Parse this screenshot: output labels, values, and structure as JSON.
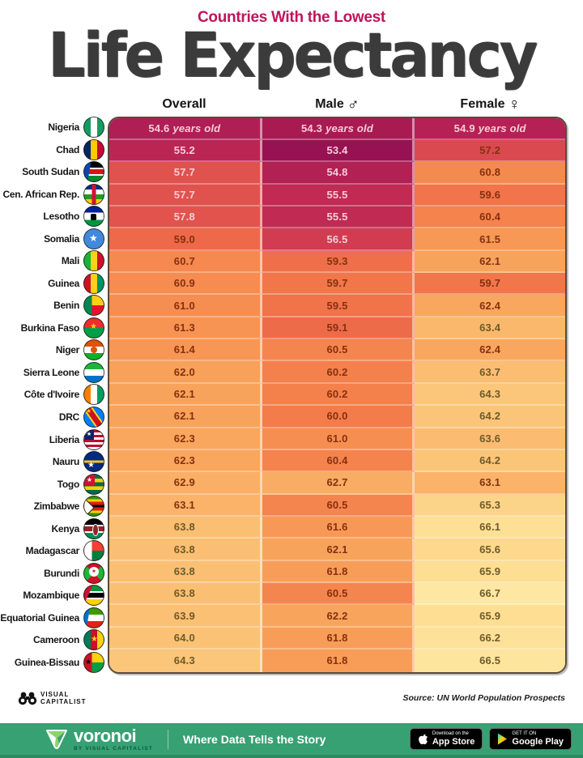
{
  "header": {
    "subtitle": "Countries With the Lowest",
    "title": "Life Expectancy"
  },
  "columns": {
    "overall_label": "Overall",
    "male_label": "Male",
    "male_symbol": "♂",
    "female_label": "Female",
    "female_symbol": "♀"
  },
  "chart_data": {
    "type": "heatmap",
    "title": "Countries With the Lowest Life Expectancy",
    "unit": "years old",
    "columns": [
      "Overall",
      "Male",
      "Female"
    ],
    "value_range": [
      53.4,
      66.7
    ],
    "rows": [
      {
        "name": "Nigeria",
        "flag": "ng",
        "overall": 54.6,
        "male": 54.3,
        "female": 54.9
      },
      {
        "name": "Chad",
        "flag": "td",
        "overall": 55.2,
        "male": 53.4,
        "female": 57.2
      },
      {
        "name": "South Sudan",
        "flag": "ss",
        "overall": 57.7,
        "male": 54.8,
        "female": 60.8
      },
      {
        "name": "Cen. African Rep.",
        "flag": "cf",
        "overall": 57.7,
        "male": 55.5,
        "female": 59.6
      },
      {
        "name": "Lesotho",
        "flag": "ls",
        "overall": 57.8,
        "male": 55.5,
        "female": 60.4
      },
      {
        "name": "Somalia",
        "flag": "so",
        "overall": 59.0,
        "male": 56.5,
        "female": 61.5
      },
      {
        "name": "Mali",
        "flag": "ml",
        "overall": 60.7,
        "male": 59.3,
        "female": 62.1
      },
      {
        "name": "Guinea",
        "flag": "gn",
        "overall": 60.9,
        "male": 59.7,
        "female": 59.7
      },
      {
        "name": "Benin",
        "flag": "bj",
        "overall": 61.0,
        "male": 59.5,
        "female": 62.4
      },
      {
        "name": "Burkina Faso",
        "flag": "bf",
        "overall": 61.3,
        "male": 59.1,
        "female": 63.4
      },
      {
        "name": "Niger",
        "flag": "ne",
        "overall": 61.4,
        "male": 60.5,
        "female": 62.4
      },
      {
        "name": "Sierra Leone",
        "flag": "sl",
        "overall": 62.0,
        "male": 60.2,
        "female": 63.7
      },
      {
        "name": "Côte d'Ivoire",
        "flag": "ci",
        "overall": 62.1,
        "male": 60.2,
        "female": 64.3
      },
      {
        "name": "DRC",
        "flag": "cd",
        "overall": 62.1,
        "male": 60.0,
        "female": 64.2
      },
      {
        "name": "Liberia",
        "flag": "lr",
        "overall": 62.3,
        "male": 61.0,
        "female": 63.6
      },
      {
        "name": "Nauru",
        "flag": "nr",
        "overall": 62.3,
        "male": 60.4,
        "female": 64.2
      },
      {
        "name": "Togo",
        "flag": "tg",
        "overall": 62.9,
        "male": 62.7,
        "female": 63.1
      },
      {
        "name": "Zimbabwe",
        "flag": "zw",
        "overall": 63.1,
        "male": 60.5,
        "female": 65.3
      },
      {
        "name": "Kenya",
        "flag": "ke",
        "overall": 63.8,
        "male": 61.6,
        "female": 66.1
      },
      {
        "name": "Madagascar",
        "flag": "mg",
        "overall": 63.8,
        "male": 62.1,
        "female": 65.6
      },
      {
        "name": "Burundi",
        "flag": "bi",
        "overall": 63.8,
        "male": 61.8,
        "female": 65.9
      },
      {
        "name": "Mozambique",
        "flag": "mz",
        "overall": 63.8,
        "male": 60.5,
        "female": 66.7
      },
      {
        "name": "Equatorial Guinea",
        "flag": "gq",
        "overall": 63.9,
        "male": 62.2,
        "female": 65.9
      },
      {
        "name": "Cameroon",
        "flag": "cm",
        "overall": 64.0,
        "male": 61.8,
        "female": 66.2
      },
      {
        "name": "Guinea-Bissau",
        "flag": "gw",
        "overall": 64.3,
        "male": 61.8,
        "female": 66.5
      }
    ],
    "color_scale": [
      [
        53,
        "#8f0e51"
      ],
      [
        54,
        "#a31753"
      ],
      [
        55,
        "#b72254"
      ],
      [
        56,
        "#c93252"
      ],
      [
        57,
        "#d84550"
      ],
      [
        58,
        "#e4574d"
      ],
      [
        59,
        "#ed694a"
      ],
      [
        60,
        "#f37c4a"
      ],
      [
        61,
        "#f68e51"
      ],
      [
        62,
        "#f8a15a"
      ],
      [
        63,
        "#fab167"
      ],
      [
        64,
        "#fbc276"
      ],
      [
        65,
        "#fcd085"
      ],
      [
        66,
        "#fddf94"
      ],
      [
        67,
        "#fdeaa8"
      ]
    ],
    "source": "UN World Population Prospects"
  },
  "colors": {
    "accent_crimson": "#c0145c",
    "title_ink": "#3b3b3b",
    "footer_green": "#37a173",
    "badge_black": "#000000",
    "light_value_text": "#f7cdd9",
    "dark_value_text": "#86300f",
    "olive_value_text": "#6f5a28"
  },
  "footer": {
    "vc_logo_line1": "VISUAL",
    "vc_logo_line2": "CAPITALIST",
    "source_label": "Source: UN World Population Prospects",
    "brand": "voronoi",
    "brand_sub": "BY VISUAL CAPITALIST",
    "tagline": "Where Data Tells the Story",
    "appstore_top": "Download on the",
    "appstore_bottom": "App Store",
    "gplay_top": "GET IT ON",
    "gplay_bottom": "Google Play"
  }
}
